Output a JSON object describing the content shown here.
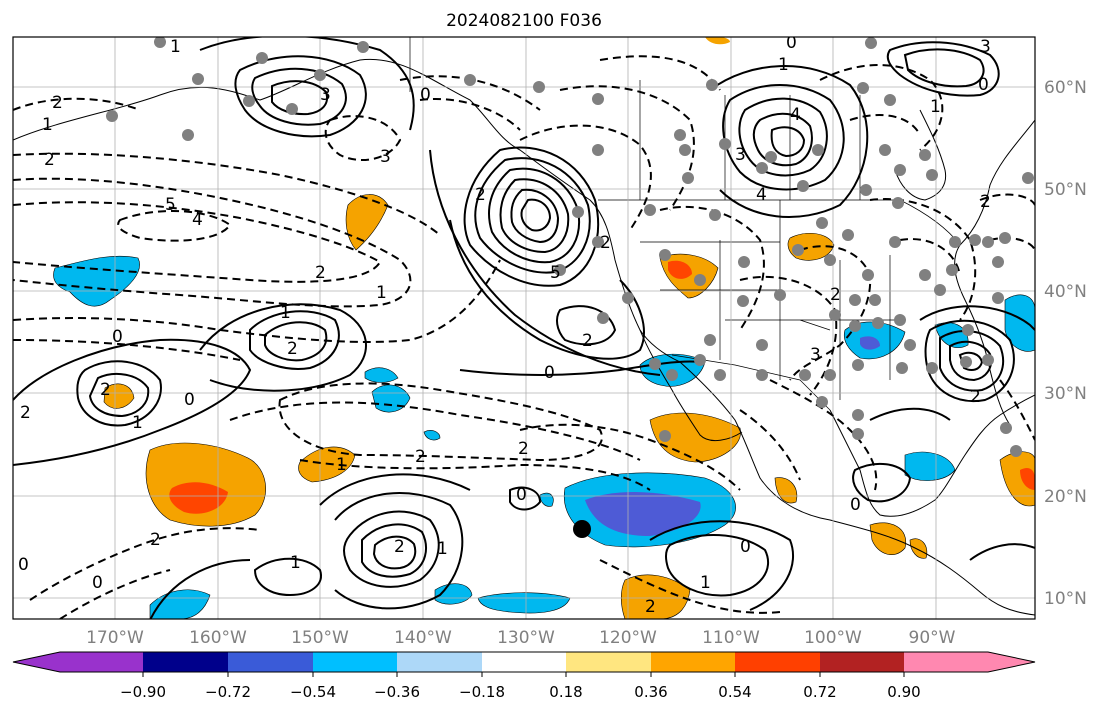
{
  "title": "2024082100 F036",
  "map": {
    "lon_labels": [
      "170°W",
      "160°W",
      "150°W",
      "140°W",
      "130°W",
      "120°W",
      "110°W",
      "100°W",
      "90°W"
    ],
    "lat_labels": [
      "60°N",
      "50°N",
      "40°N",
      "30°N",
      "20°N",
      "10°N"
    ],
    "contour_labels": [
      "2",
      "1",
      "2",
      "3",
      "3",
      "1",
      "0",
      "5",
      "4",
      "2",
      "1",
      "0",
      "1",
      "2",
      "2",
      "2",
      "0",
      "1",
      "2",
      "0",
      "0",
      "1",
      "2",
      "2",
      "0",
      "1",
      "1",
      "2",
      "2",
      "5",
      "0",
      "2",
      "2",
      "3",
      "4",
      "4",
      "0",
      "1",
      "2",
      "3",
      "1",
      "0",
      "3",
      "2",
      "2",
      "1",
      "0",
      "0",
      "2"
    ],
    "shading_colors": {
      "strong_neg": "#4e5bd6",
      "neg": "#00b8ef",
      "weak_neg": "#aee0fa",
      "weak_pos": "#fbe68a",
      "pos": "#f5a300",
      "strong_pos": "#ff4500"
    }
  },
  "colorbar": {
    "tick_labels": [
      "−0.90",
      "−0.72",
      "−0.54",
      "−0.36",
      "−0.18",
      "0.18",
      "0.36",
      "0.54",
      "0.72",
      "0.90"
    ],
    "colors": [
      "#9932cc",
      "#9932cc",
      "#00008b",
      "#3a5bd8",
      "#00bfff",
      "#add8f8",
      "#ffffff",
      "#ffe680",
      "#ffa500",
      "#ff4000",
      "#b22222",
      "#ff88b0",
      "#ff88b0"
    ]
  }
}
